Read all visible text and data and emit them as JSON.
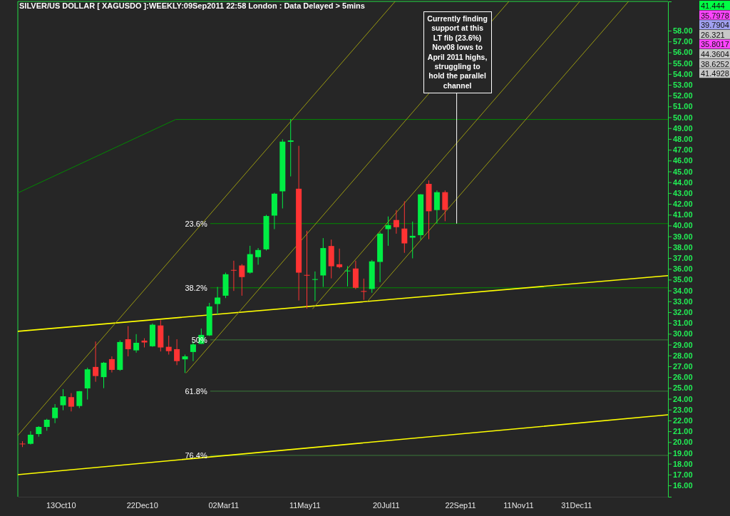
{
  "chart_data": {
    "type": "candlestick",
    "title": "SILVER/US DOLLAR [ XAGUSDO ]:WEEKLY:09Sep2011 22:58 London : Data Delayed > 5mins",
    "x": [
      "2010-09-10",
      "2010-09-17",
      "2010-09-24",
      "2010-10-01",
      "2010-10-08",
      "2010-10-15",
      "2010-10-22",
      "2010-10-29",
      "2010-11-05",
      "2010-11-12",
      "2010-11-19",
      "2010-11-26",
      "2010-12-03",
      "2010-12-10",
      "2010-12-17",
      "2010-12-24",
      "2010-12-31",
      "2011-01-07",
      "2011-01-14",
      "2011-01-21",
      "2011-01-28",
      "2011-02-04",
      "2011-02-11",
      "2011-02-18",
      "2011-02-25",
      "2011-03-04",
      "2011-03-11",
      "2011-03-18",
      "2011-03-25",
      "2011-04-01",
      "2011-04-08",
      "2011-04-15",
      "2011-04-22",
      "2011-04-29",
      "2011-05-06",
      "2011-05-13",
      "2011-05-20",
      "2011-05-27",
      "2011-06-03",
      "2011-06-10",
      "2011-06-17",
      "2011-06-24",
      "2011-07-01",
      "2011-07-08",
      "2011-07-15",
      "2011-07-22",
      "2011-07-29",
      "2011-08-05",
      "2011-08-12",
      "2011-08-19",
      "2011-08-26",
      "2011-09-02",
      "2011-09-09"
    ],
    "ohlc": [
      [
        19.86,
        20.08,
        19.54,
        19.82
      ],
      [
        19.84,
        21.0,
        19.78,
        20.68
      ],
      [
        20.74,
        21.47,
        20.5,
        21.4
      ],
      [
        21.4,
        22.15,
        21.05,
        22.06
      ],
      [
        22.21,
        23.51,
        21.75,
        23.18
      ],
      [
        23.4,
        24.89,
        22.94,
        24.23
      ],
      [
        24.15,
        24.52,
        22.83,
        23.27
      ],
      [
        23.33,
        24.72,
        23.14,
        24.7
      ],
      [
        24.96,
        26.87,
        23.93,
        26.72
      ],
      [
        26.94,
        29.29,
        25.57,
        26.1
      ],
      [
        26.0,
        27.4,
        24.98,
        27.33
      ],
      [
        27.66,
        27.92,
        26.43,
        26.67
      ],
      [
        26.67,
        29.39,
        26.58,
        29.24
      ],
      [
        29.5,
        30.71,
        27.92,
        28.58
      ],
      [
        28.47,
        29.97,
        28.26,
        29.17
      ],
      [
        29.37,
        29.59,
        28.74,
        29.2
      ],
      [
        28.85,
        30.95,
        28.8,
        30.84
      ],
      [
        30.77,
        31.26,
        28.37,
        28.74
      ],
      [
        28.8,
        29.83,
        28.08,
        28.4
      ],
      [
        28.58,
        29.5,
        27.11,
        27.48
      ],
      [
        27.64,
        28.08,
        26.39,
        27.92
      ],
      [
        28.32,
        29.31,
        27.48,
        29.02
      ],
      [
        29.07,
        30.49,
        29.05,
        29.9
      ],
      [
        29.85,
        32.86,
        29.8,
        32.53
      ],
      [
        32.75,
        34.33,
        31.77,
        33.35
      ],
      [
        33.52,
        35.65,
        33.3,
        35.5
      ],
      [
        35.9,
        36.75,
        33.96,
        35.84
      ],
      [
        36.31,
        36.44,
        33.52,
        35.24
      ],
      [
        35.65,
        38.13,
        35.56,
        37.36
      ],
      [
        37.08,
        37.92,
        36.38,
        37.74
      ],
      [
        37.8,
        40.99,
        37.69,
        40.88
      ],
      [
        40.92,
        43.03,
        39.67,
        42.94
      ],
      [
        43.16,
        47.97,
        41.58,
        47.75
      ],
      [
        47.73,
        49.84,
        44.54,
        47.86
      ],
      [
        43.4,
        47.36,
        33.08,
        35.65
      ],
      [
        35.44,
        39.52,
        32.32,
        35.38
      ],
      [
        35.0,
        35.76,
        33.02,
        35.05
      ],
      [
        35.39,
        38.84,
        34.33,
        37.92
      ],
      [
        38.11,
        38.7,
        35.12,
        36.24
      ],
      [
        36.42,
        37.87,
        36.05,
        36.16
      ],
      [
        35.78,
        36.26,
        34.38,
        35.84
      ],
      [
        36.03,
        36.75,
        34.12,
        34.25
      ],
      [
        33.95,
        35.1,
        33.13,
        33.88
      ],
      [
        34.14,
        36.82,
        33.79,
        36.69
      ],
      [
        36.64,
        39.38,
        34.77,
        39.25
      ],
      [
        39.67,
        40.84,
        38.13,
        40.04
      ],
      [
        40.51,
        41.43,
        39.25,
        39.85
      ],
      [
        39.72,
        42.24,
        37.48,
        38.35
      ],
      [
        38.88,
        40.37,
        36.97,
        39.05
      ],
      [
        39.11,
        42.9,
        38.68,
        42.88
      ],
      [
        43.85,
        44.17,
        38.74,
        41.32
      ],
      [
        41.43,
        43.24,
        40.18,
        43.08
      ],
      [
        43.08,
        43.24,
        40.4,
        41.444
      ]
    ],
    "colors": [
      "#ff3333",
      "#00ee44",
      "#00ee44",
      "#00ee44",
      "#00ee44",
      "#00ee44",
      "#ff3333",
      "#00ee44",
      "#00ee44",
      "#ff3333",
      "#00ee44",
      "#ff3333",
      "#00ee44",
      "#ff3333",
      "#00ee44",
      "#ff3333",
      "#00ee44",
      "#ff3333",
      "#ff3333",
      "#ff3333",
      "#00ee44",
      "#00ee44",
      "#00ee44",
      "#00ee44",
      "#00ee44",
      "#00ee44",
      "#ff3333",
      "#ff3333",
      "#00ee44",
      "#00ee44",
      "#00ee44",
      "#00ee44",
      "#00ee44",
      "#00ee44",
      "#ff3333",
      "#ff3333",
      "#00ee44",
      "#00ee44",
      "#ff3333",
      "#ff3333",
      "#00ee44",
      "#ff3333",
      "#ff3333",
      "#00ee44",
      "#00ee44",
      "#00ee44",
      "#ff3333",
      "#ff3333",
      "#00ee44",
      "#00ee44",
      "#ff3333",
      "#00ee44",
      "#ff3333"
    ],
    "series": [
      {
        "type": "line",
        "color": "#ffff00",
        "x": [
          "2010-09-06",
          "2012-03-19"
        ],
        "values": [
          30.23,
          35.37
        ]
      },
      {
        "type": "line",
        "color": "#ffff00",
        "x": [
          "2010-09-06",
          "2012-03-19"
        ],
        "values": [
          16.99,
          22.52
        ]
      },
      {
        "type": "line",
        "color": "#008a00",
        "x": [
          "2010-09-06",
          "2011-01-20",
          "2012-03-19"
        ],
        "values": [
          43.01,
          49.8,
          49.8
        ]
      },
      {
        "type": "line",
        "color": "#9a9a10",
        "x": [
          "2010-09-06",
          "2011-07-28"
        ],
        "values": [
          20.62,
          60.7
        ]
      },
      {
        "type": "line",
        "color": "#9a9a10",
        "x": [
          "2011-01-29",
          "2011-11-03"
        ],
        "values": [
          26.39,
          60.7
        ]
      },
      {
        "type": "line",
        "color": "#9a9a10",
        "x": [
          "2011-05-18",
          "2012-01-03"
        ],
        "values": [
          32.32,
          60.7
        ]
      },
      {
        "type": "line",
        "color": "#9a9a10",
        "x": [
          "2011-07-04",
          "2012-02-14"
        ],
        "values": [
          32.98,
          60.7
        ]
      }
    ],
    "ref_lines": [
      {
        "axis": "y",
        "value": 40.18,
        "color": "#008a00"
      },
      {
        "axis": "y",
        "value": 34.25,
        "color": "#008a00"
      },
      {
        "axis": "y",
        "value": 29.44,
        "color": "#3a7a3a"
      },
      {
        "axis": "y",
        "value": 24.7,
        "color": "#3a7a3a"
      },
      {
        "axis": "y",
        "value": 18.77,
        "color": "#3a7a3a"
      }
    ],
    "annotations": [
      {
        "text": "Currently finding support at this LT fib (23.6%) Nov08 lows to April 2011 highs, struggling to hold the parallel channel",
        "x": "2011-09-19",
        "y": 40.18
      },
      {
        "text": "23.6%",
        "x": "2011-02-18",
        "y": 40.18
      },
      {
        "text": "38.2%",
        "x": "2011-02-18",
        "y": 34.25
      },
      {
        "text": "50%",
        "x": "2011-02-18",
        "y": 29.44
      },
      {
        "text": "61.8%",
        "x": "2011-02-18",
        "y": 24.7
      },
      {
        "text": "76.4%",
        "x": "2011-02-18",
        "y": 18.77
      },
      "41.444",
      "35.7978",
      "39.7904",
      "26.321",
      "35.8017",
      "44.3604",
      "38.6252",
      "41.4928"
    ],
    "xlim": [
      "2010-09-06",
      "2012-03-19"
    ],
    "xticks": [
      {
        "value": "2010-10-13",
        "label": "13Oct10"
      },
      {
        "value": "2010-12-22",
        "label": "22Dec10"
      },
      {
        "value": "2011-03-02",
        "label": "02Mar11"
      },
      {
        "value": "2011-05-11",
        "label": "11May11"
      },
      {
        "value": "2011-07-20",
        "label": "20Jul11"
      },
      {
        "value": "2011-09-22",
        "label": "22Sep11"
      },
      {
        "value": "2011-11-11",
        "label": "11Nov11"
      },
      {
        "value": "2011-12-31",
        "label": "31Dec11"
      }
    ],
    "ylim": [
      14.95,
      60.7
    ],
    "yticks": [
      {
        "value": 16,
        "label": "16.00"
      },
      {
        "value": 17,
        "label": "17.00"
      },
      {
        "value": 18,
        "label": "18.00"
      },
      {
        "value": 19,
        "label": "19.00"
      },
      {
        "value": 20,
        "label": "20.00"
      },
      {
        "value": 21,
        "label": "21.00"
      },
      {
        "value": 22,
        "label": "22.00"
      },
      {
        "value": 23,
        "label": "23.00"
      },
      {
        "value": 24,
        "label": "24.00"
      },
      {
        "value": 25,
        "label": "25.00"
      },
      {
        "value": 26,
        "label": "26.00"
      },
      {
        "value": 27,
        "label": "27.00"
      },
      {
        "value": 28,
        "label": "28.00"
      },
      {
        "value": 29,
        "label": "29.00"
      },
      {
        "value": 30,
        "label": "30.00"
      },
      {
        "value": 31,
        "label": "31.00"
      },
      {
        "value": 32,
        "label": "32.00"
      },
      {
        "value": 33,
        "label": "33.00"
      },
      {
        "value": 34,
        "label": "34.00"
      },
      {
        "value": 35,
        "label": "35.00"
      },
      {
        "value": 36,
        "label": "36.00"
      },
      {
        "value": 37,
        "label": "37.00"
      },
      {
        "value": 38,
        "label": "38.00"
      },
      {
        "value": 39,
        "label": "39.00"
      },
      {
        "value": 40,
        "label": "40.00"
      },
      {
        "value": 41,
        "label": "41.00"
      },
      {
        "value": 42,
        "label": "42.00"
      },
      {
        "value": 43,
        "label": "43.00"
      },
      {
        "value": 44,
        "label": "44.00"
      },
      {
        "value": 45,
        "label": "45.00"
      },
      {
        "value": 46,
        "label": "46.00"
      },
      {
        "value": 47,
        "label": "47.00"
      },
      {
        "value": 48,
        "label": "48.00"
      },
      {
        "value": 49,
        "label": "49.00"
      },
      {
        "value": 50,
        "label": "50.00"
      },
      {
        "value": 51,
        "label": "51.00"
      },
      {
        "value": 52,
        "label": "52.00"
      },
      {
        "value": 53,
        "label": "53.00"
      },
      {
        "value": 54,
        "label": "54.00"
      },
      {
        "value": 55,
        "label": "55.00"
      },
      {
        "value": 56,
        "label": "56.00"
      },
      {
        "value": 57,
        "label": "57.00"
      },
      {
        "value": 58,
        "label": "58.00"
      }
    ]
  }
}
